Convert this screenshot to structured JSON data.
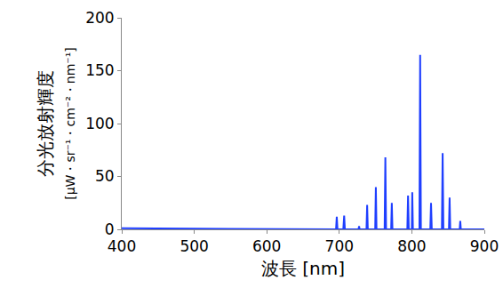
{
  "chart_data": {
    "type": "line",
    "xlabel": "波長 [nm]",
    "ylabel": [
      "分光放射輝度",
      "[μW・sr⁻¹・cm⁻²・nm⁻¹]"
    ],
    "x": [
      400,
      690,
      695.5,
      696.5,
      697.5,
      705.5,
      706.7,
      707.7,
      726.5,
      727.3,
      728,
      737.5,
      738.4,
      739.3,
      749.5,
      750.4,
      751.3,
      762.5,
      763.5,
      764.5,
      771.5,
      772.4,
      773.3,
      793.8,
      794.8,
      795.8,
      800,
      800.6,
      801.5,
      810.5,
      811.5,
      812.5,
      825.5,
      826.5,
      827.5,
      841.5,
      842.5,
      843.5,
      851.2,
      852.1,
      853,
      866,
      866.8,
      867.6,
      900
    ],
    "values": [
      1,
      0.5,
      0,
      12,
      0,
      0,
      13,
      0,
      0,
      3,
      0,
      0,
      23,
      0,
      0,
      40,
      0,
      0,
      68,
      0,
      0,
      25,
      0,
      0,
      32,
      0,
      0,
      35,
      0,
      0,
      165,
      0,
      0,
      25,
      0,
      0,
      72,
      0,
      0,
      30,
      0,
      0,
      8,
      0,
      0
    ],
    "color": "#1f3fff",
    "xlim": [
      400,
      900
    ],
    "xticks": [
      400,
      500,
      600,
      700,
      800,
      900
    ],
    "ylim": [
      0,
      200
    ],
    "yticks": [
      0,
      50,
      100,
      150,
      200
    ],
    "grid": false
  }
}
